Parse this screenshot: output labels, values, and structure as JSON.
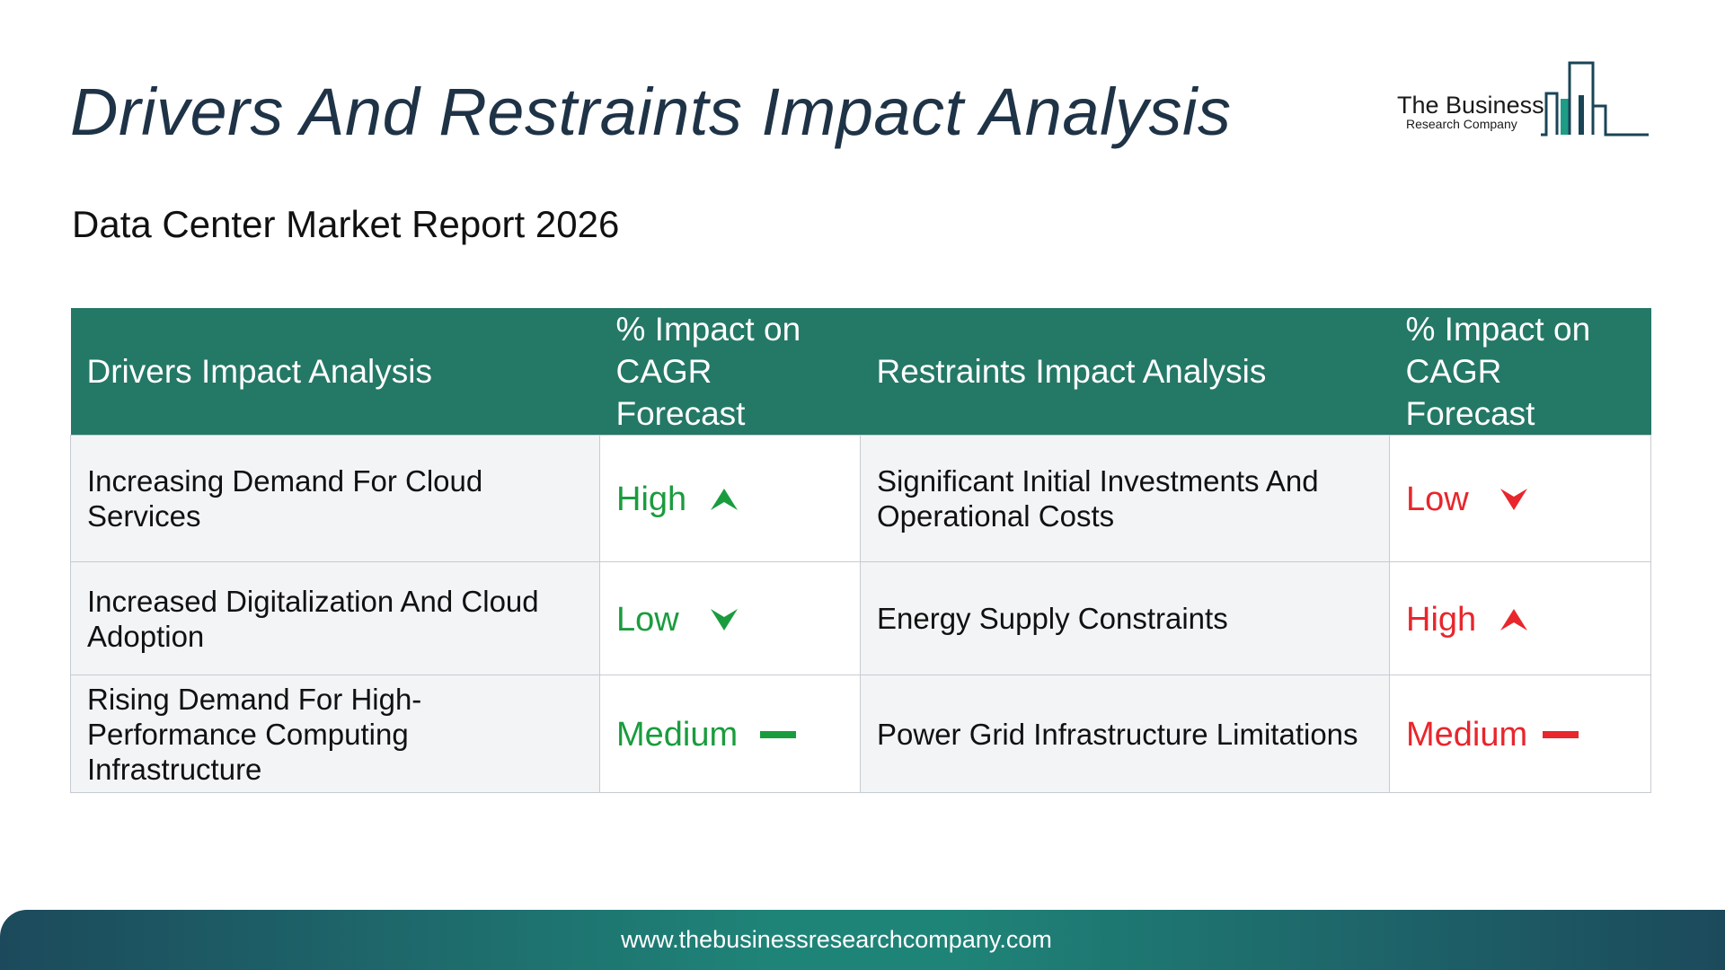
{
  "header": {
    "title": "Drivers And Restraints Impact Analysis",
    "subtitle": "Data Center Market Report 2026"
  },
  "logo": {
    "line1": "The Business",
    "line2": "Research Company"
  },
  "table": {
    "headers": {
      "drivers": "Drivers Impact Analysis",
      "drivers_impact": "% Impact on CAGR Forecast",
      "restraints": "Restraints Impact Analysis",
      "restraints_impact": "% Impact on CAGR Forecast"
    },
    "rows": [
      {
        "driver": "Increasing Demand For Cloud Services",
        "driver_impact": "High",
        "driver_icon": "arrow-up-icon",
        "restraint": "Significant Initial Investments And Operational Costs",
        "restraint_impact": "Low",
        "restraint_icon": "arrow-down-icon"
      },
      {
        "driver": "Increased Digitalization And Cloud Adoption",
        "driver_impact": "Low",
        "driver_icon": "arrow-down-icon",
        "restraint": "Energy Supply Constraints",
        "restraint_impact": "High",
        "restraint_icon": "arrow-up-icon"
      },
      {
        "driver": "Rising Demand For High-Performance Computing Infrastructure",
        "driver_impact": "Medium",
        "driver_icon": "dash-icon",
        "restraint": "Power Grid Infrastructure Limitations",
        "restraint_impact": "Medium",
        "restraint_icon": "dash-icon"
      }
    ]
  },
  "footer": {
    "url": "www.thebusinessresearchcompany.com"
  },
  "colors": {
    "header_bg": "#247866",
    "driver_impact": "#1a9c3e",
    "restraint_impact": "#e8262c",
    "title": "#1f3347"
  }
}
